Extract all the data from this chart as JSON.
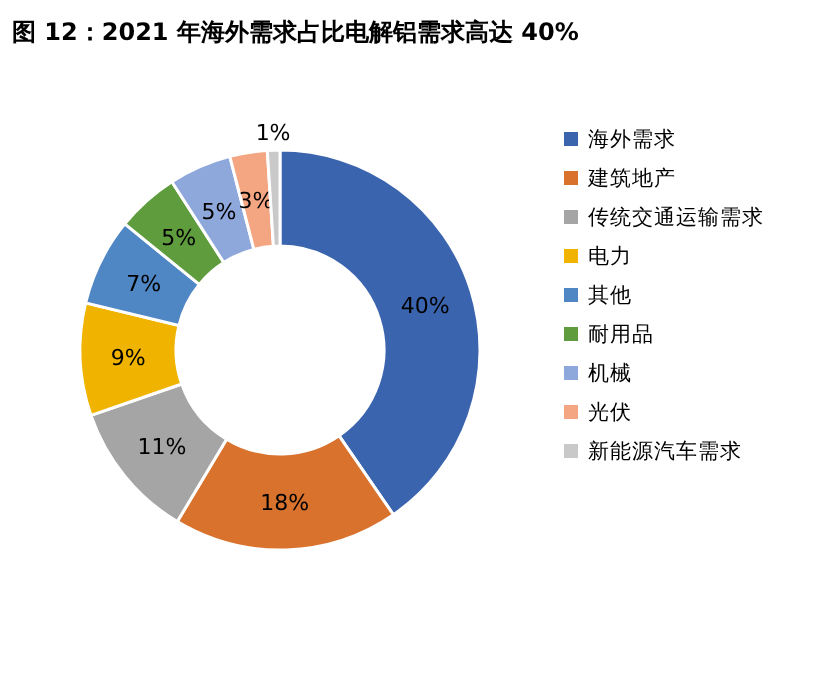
{
  "chart_data": {
    "type": "donut",
    "title": "图 12：2021 年海外需求占比电解铝需求高达 40%",
    "categories": [
      "海外需求",
      "建筑地产",
      "传统交通运输需求",
      "电力",
      "其他",
      "耐用品",
      "机械",
      "光伏",
      "新能源汽车需求"
    ],
    "values": [
      40,
      18,
      11,
      9,
      7,
      5,
      5,
      3,
      1
    ],
    "colors": [
      "#3a64ad",
      "#d9722d",
      "#a5a5a5",
      "#f0b400",
      "#4f86c4",
      "#5f9c3e",
      "#8fa8dc",
      "#f4a582",
      "#c9c9c9"
    ],
    "value_labels": [
      "40%",
      "18%",
      "11%",
      "9%",
      "7%",
      "5%",
      "5%",
      "3%",
      "1%"
    ],
    "legend": "right"
  }
}
